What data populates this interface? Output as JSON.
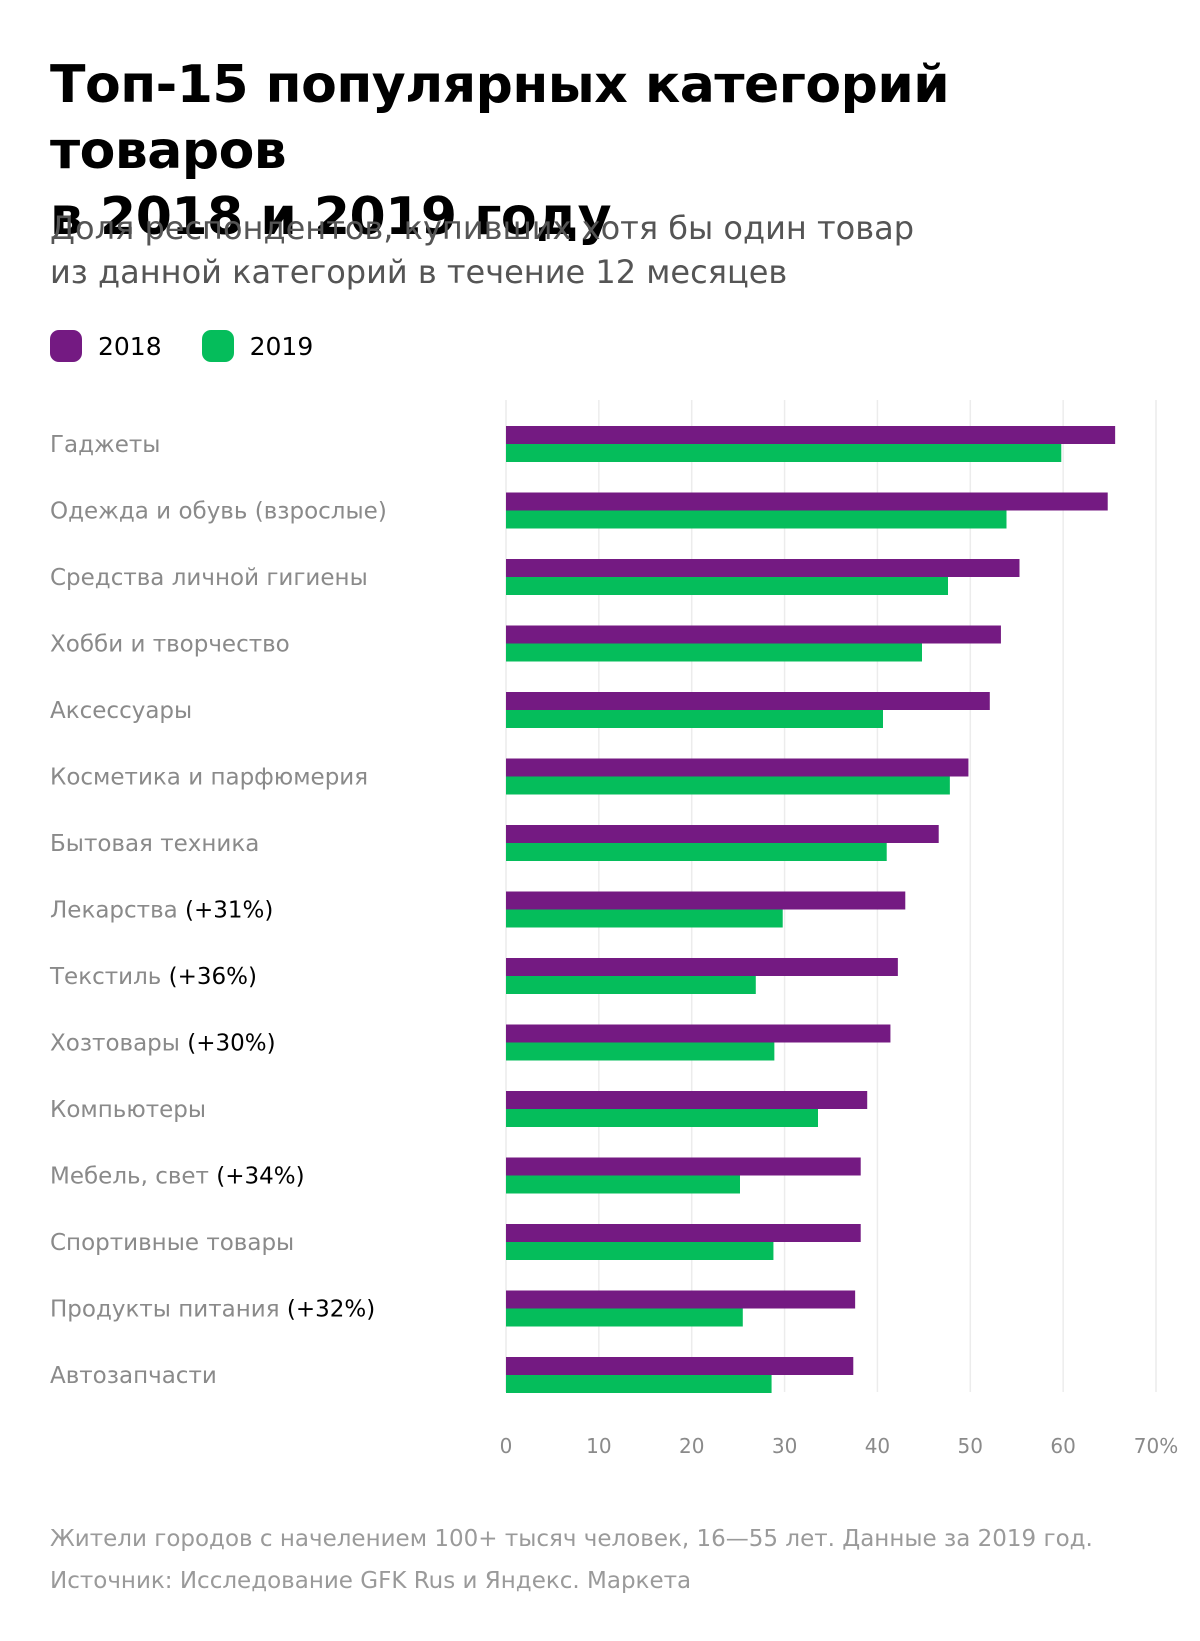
{
  "title_lines": [
    "Топ-15 популярных категорий товаров",
    "в 2018 и 2019 году"
  ],
  "subtitle_lines": [
    "Доля респондентов, купивших хотя бы один товар",
    "из данной категорий в течение 12 месяцев"
  ],
  "legend": [
    {
      "label": "2018",
      "color": "#741a82"
    },
    {
      "label": "2019",
      "color": "#05bd5b"
    }
  ],
  "footer": {
    "note": "Жители городов с начелением 100+ тысяч человек, 16—55 лет. Данные за 2019 год.",
    "source": "Источник: Исследование GFK Rus и Яндекс. Маркета"
  },
  "chart_data": {
    "type": "bar",
    "orientation": "horizontal",
    "title": "Топ-15 популярных категорий товаров в 2018 и 2019 году",
    "xlabel": "",
    "ylabel": "",
    "xlim": [
      0,
      70
    ],
    "x_unit": "%",
    "ticks": [
      "0",
      "10",
      "20",
      "30",
      "40",
      "50",
      "60",
      "70%"
    ],
    "tick_values": [
      0,
      10,
      20,
      30,
      40,
      50,
      60,
      70
    ],
    "grid": true,
    "legend_position": "top-left",
    "categories": [
      {
        "label": "Гаджеты",
        "note": ""
      },
      {
        "label": "Одежда и обувь (взрослые)",
        "note": ""
      },
      {
        "label": "Средства личной гигиены",
        "note": ""
      },
      {
        "label": "Хобби и творчество",
        "note": ""
      },
      {
        "label": "Аксессуары",
        "note": ""
      },
      {
        "label": "Косметика и парфюмерия",
        "note": ""
      },
      {
        "label": "Бытовая техника",
        "note": ""
      },
      {
        "label": "Лекарства",
        "note": "(+31%)"
      },
      {
        "label": "Текстиль",
        "note": "(+36%)"
      },
      {
        "label": "Хозтовары",
        "note": "(+30%)"
      },
      {
        "label": "Компьютеры",
        "note": ""
      },
      {
        "label": "Мебель, свет",
        "note": "(+34%)"
      },
      {
        "label": "Спортивные товары",
        "note": ""
      },
      {
        "label": "Продукты питания",
        "note": "(+32%)"
      },
      {
        "label": "Автозапчасти",
        "note": ""
      }
    ],
    "series": [
      {
        "name": "2018",
        "color": "#741a82",
        "values": [
          65.6,
          64.8,
          55.3,
          53.3,
          52.1,
          49.8,
          46.6,
          43.0,
          42.2,
          41.4,
          38.9,
          38.2,
          38.2,
          37.6,
          37.4
        ]
      },
      {
        "name": "2019",
        "color": "#05bd5b",
        "values": [
          59.8,
          53.9,
          47.6,
          44.8,
          40.6,
          47.8,
          41.0,
          29.8,
          26.9,
          28.9,
          33.6,
          25.2,
          28.8,
          25.5,
          28.6
        ]
      }
    ]
  }
}
